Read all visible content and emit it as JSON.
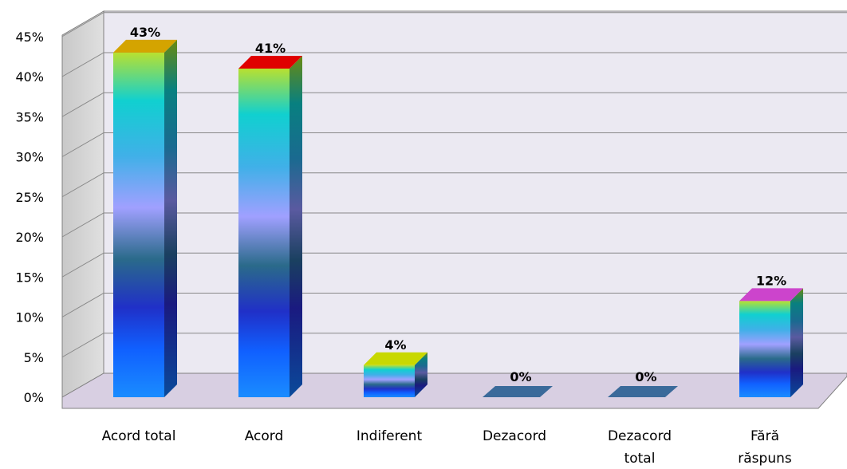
{
  "chart_data": {
    "type": "bar",
    "categories": [
      "Acord total",
      "Acord",
      "Indiferent",
      "Dezacord",
      "Dezacord total",
      "Fără răspuns"
    ],
    "category_lines": [
      [
        "Acord total"
      ],
      [
        "Acord"
      ],
      [
        "Indiferent"
      ],
      [
        "Dezacord"
      ],
      [
        "Dezacord",
        "total"
      ],
      [
        "Fără",
        "răspuns"
      ]
    ],
    "values": [
      43,
      41,
      4,
      0,
      0,
      12
    ],
    "data_labels": [
      "43%",
      "41%",
      "4%",
      "0%",
      "0%",
      "12%"
    ],
    "y_ticks": [
      "0%",
      "5%",
      "10%",
      "15%",
      "20%",
      "25%",
      "30%",
      "35%",
      "40%",
      "45%"
    ],
    "ylim": [
      0,
      45
    ],
    "grid": true,
    "legend": "none",
    "style": "3d",
    "top_colors": [
      "#d4a400",
      "#e00000",
      "#c8d800",
      "#3a6a9a",
      "#3a6a9a",
      "#cc44cc"
    ]
  }
}
